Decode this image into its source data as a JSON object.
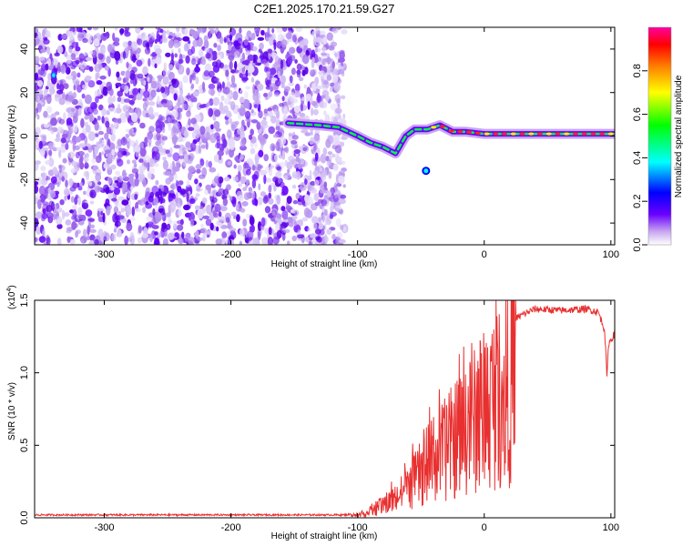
{
  "title": "C2E1.2025.170.21.59.G27",
  "chart_data": [
    {
      "type": "heatmap",
      "xlabel": "Height of straight line (km)",
      "ylabel": "Frequency (Hz)",
      "xlim": [
        -355,
        103
      ],
      "ylim": [
        -50,
        50
      ],
      "xticks": [
        -300,
        -200,
        -100,
        0,
        100
      ],
      "yticks": [
        -40,
        -20,
        0,
        20,
        40
      ],
      "colorbar": {
        "label": "Normalized spectral amplitude",
        "range": [
          0,
          1
        ],
        "ticks": [
          "0.0",
          "0.2",
          "0.4",
          "0.6",
          "0.8"
        ],
        "colors": [
          "#ffffff",
          "#c8a8f0",
          "#6a00ff",
          "#0000ff",
          "#00ffff",
          "#00ff00",
          "#ffff00",
          "#ff8000",
          "#ff0000",
          "#ff00a0"
        ]
      },
      "noise_region": {
        "x": [
          -355,
          -110
        ],
        "y": [
          -50,
          50
        ]
      },
      "signal_track": [
        {
          "x": -155,
          "y": 6
        },
        {
          "x": -130,
          "y": 5
        },
        {
          "x": -115,
          "y": 4
        },
        {
          "x": -100,
          "y": 0
        },
        {
          "x": -90,
          "y": -3
        },
        {
          "x": -80,
          "y": -5
        },
        {
          "x": -70,
          "y": -8
        },
        {
          "x": -62,
          "y": 0
        },
        {
          "x": -55,
          "y": 3
        },
        {
          "x": -45,
          "y": 3
        },
        {
          "x": -35,
          "y": 5
        },
        {
          "x": -25,
          "y": 2
        },
        {
          "x": -15,
          "y": 2
        },
        {
          "x": 0,
          "y": 1
        },
        {
          "x": 20,
          "y": 1
        },
        {
          "x": 50,
          "y": 1
        },
        {
          "x": 80,
          "y": 1
        },
        {
          "x": 103,
          "y": 1
        }
      ]
    },
    {
      "type": "line",
      "xlabel": "Height of straight line (km)",
      "ylabel": "SNR (10 * v/v)",
      "yscale_label": "(x10",
      "yscale_exp": "4",
      "xlim": [
        -355,
        103
      ],
      "ylim": [
        0,
        1.5
      ],
      "xticks": [
        -300,
        -200,
        -100,
        0,
        100
      ],
      "yticks": [
        "0.0",
        "0.5",
        "1.0",
        "1.5"
      ],
      "color": "#e83030",
      "envelope": [
        {
          "x": -355,
          "y": 0.02
        },
        {
          "x": -110,
          "y": 0.02
        },
        {
          "x": -100,
          "y": 0.03
        },
        {
          "x": -90,
          "y": 0.06
        },
        {
          "x": -80,
          "y": 0.12
        },
        {
          "x": -70,
          "y": 0.2
        },
        {
          "x": -60,
          "y": 0.3
        },
        {
          "x": -50,
          "y": 0.45
        },
        {
          "x": -40,
          "y": 0.6
        },
        {
          "x": -30,
          "y": 0.7
        },
        {
          "x": -20,
          "y": 0.85
        },
        {
          "x": -10,
          "y": 0.95
        },
        {
          "x": 0,
          "y": 1.1
        },
        {
          "x": 10,
          "y": 1.25
        },
        {
          "x": 20,
          "y": 1.35
        },
        {
          "x": 30,
          "y": 1.4
        },
        {
          "x": 40,
          "y": 1.44
        },
        {
          "x": 60,
          "y": 1.43
        },
        {
          "x": 80,
          "y": 1.44
        },
        {
          "x": 90,
          "y": 1.42
        },
        {
          "x": 95,
          "y": 1.3
        },
        {
          "x": 97,
          "y": 0.95
        },
        {
          "x": 98,
          "y": 1.2
        },
        {
          "x": 103,
          "y": 1.27
        }
      ]
    }
  ]
}
